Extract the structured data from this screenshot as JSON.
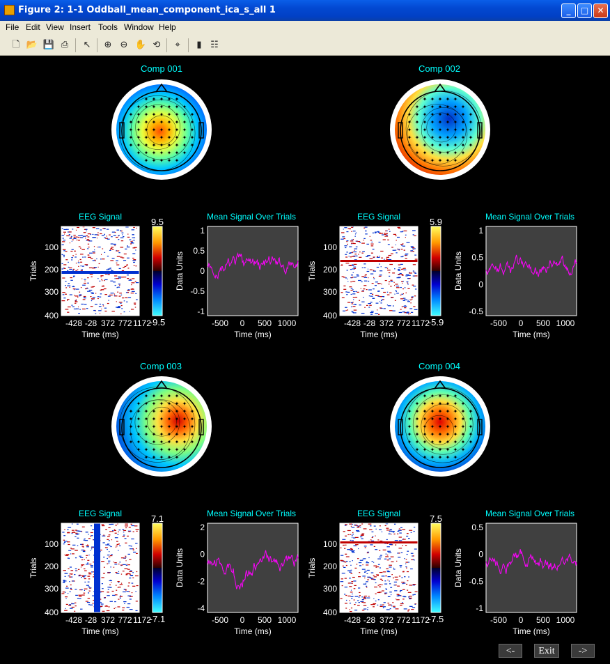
{
  "window": {
    "title": "Figure 2: 1-1 Oddball_mean_component_ica_s_all 1",
    "controls": [
      "minimize",
      "maximize",
      "close"
    ]
  },
  "menu": [
    "File",
    "Edit",
    "View",
    "Insert",
    "Tools",
    "Window",
    "Help"
  ],
  "toolbar": [
    "new-file-icon",
    "open-folder-icon",
    "save-icon",
    "print-icon",
    "pointer-icon",
    "zoom-in-icon",
    "zoom-out-icon",
    "pan-hand-icon",
    "rotate-icon",
    "data-cursor-icon",
    "colorbar-icon",
    "legend-icon"
  ],
  "colors": {
    "background": "#000000",
    "title_text": "#00ffff",
    "mean_line": "#ff00ff",
    "axis_bg": "#404040",
    "axis_text": "#ffffff"
  },
  "nav": {
    "prev": "<-",
    "exit": "Exit",
    "next": "->"
  },
  "components": [
    {
      "title": "Comp 001",
      "eeg": {
        "title": "EEG Signal",
        "ylabel": "Trials",
        "xlabel": "Time (ms)",
        "yticks": [
          "100",
          "200",
          "300",
          "400"
        ],
        "xticks": [
          "-428",
          "-28",
          "372",
          "772",
          "1172"
        ],
        "cbar_max": "9.5",
        "cbar_min": "-9.5"
      },
      "mean": {
        "title": "Mean Signal Over Trials",
        "ylabel": "Data Units",
        "xlabel": "Time (ms)",
        "yticks": [
          "1",
          "0.5",
          "0",
          "-0.5",
          "-1"
        ],
        "xticks": [
          "-500",
          "0",
          "500",
          "1000"
        ]
      }
    },
    {
      "title": "Comp 002",
      "eeg": {
        "title": "EEG Signal",
        "ylabel": "Trials",
        "xlabel": "Time (ms)",
        "yticks": [
          "100",
          "200",
          "300",
          "400"
        ],
        "xticks": [
          "-428",
          "-28",
          "372",
          "772",
          "1172"
        ],
        "cbar_max": "5.9",
        "cbar_min": "-5.9"
      },
      "mean": {
        "title": "Mean Signal Over Trials",
        "ylabel": "Data Units",
        "xlabel": "Time (ms)",
        "yticks": [
          "1",
          "0.5",
          "0",
          "-0.5"
        ],
        "xticks": [
          "-500",
          "0",
          "500",
          "1000"
        ]
      }
    },
    {
      "title": "Comp 003",
      "eeg": {
        "title": "EEG Signal",
        "ylabel": "Trials",
        "xlabel": "Time (ms)",
        "yticks": [
          "100",
          "200",
          "300",
          "400"
        ],
        "xticks": [
          "-428",
          "-28",
          "372",
          "772",
          "1172"
        ],
        "cbar_max": "7.1",
        "cbar_min": "-7.1"
      },
      "mean": {
        "title": "Mean Signal Over Trials",
        "ylabel": "Data Units",
        "xlabel": "Time (ms)",
        "yticks": [
          "2",
          "0",
          "-2",
          "-4"
        ],
        "xticks": [
          "-500",
          "0",
          "500",
          "1000"
        ]
      }
    },
    {
      "title": "Comp 004",
      "eeg": {
        "title": "EEG Signal",
        "ylabel": "Trials",
        "xlabel": "Time (ms)",
        "yticks": [
          "100",
          "200",
          "300",
          "400"
        ],
        "xticks": [
          "-428",
          "-28",
          "372",
          "772",
          "1172"
        ],
        "cbar_max": "7.5",
        "cbar_min": "-7.5"
      },
      "mean": {
        "title": "Mean Signal Over Trials",
        "ylabel": "Data Units",
        "xlabel": "Time (ms)",
        "yticks": [
          "0.5",
          "0",
          "-0.5",
          "-1"
        ],
        "xticks": [
          "-500",
          "0",
          "500",
          "1000"
        ]
      }
    }
  ]
}
